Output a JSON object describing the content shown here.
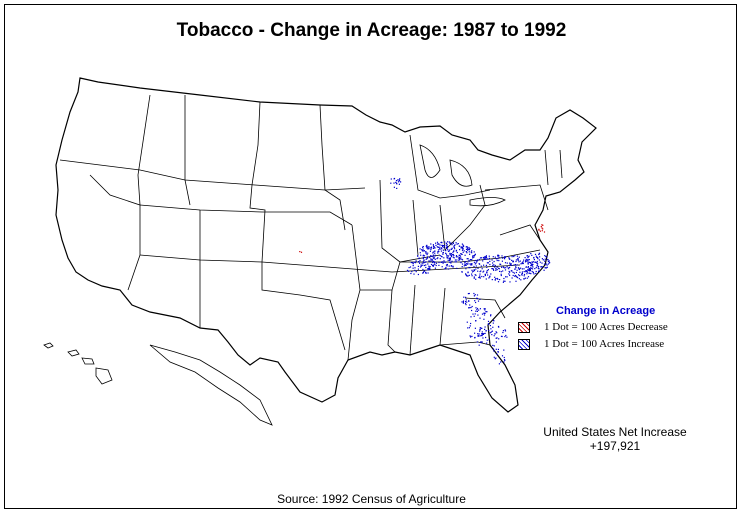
{
  "title": "Tobacco - Change in Acreage:  1987 to 1992",
  "legend": {
    "title": "Change in Acreage",
    "items": [
      {
        "label": "1 Dot = 100 Acres  Decrease",
        "color": "#cc0000"
      },
      {
        "label": "1 Dot = 100 Acres Increase",
        "color": "#0000cc"
      }
    ]
  },
  "net": {
    "label": "United States Net Increase",
    "value": "+197,921"
  },
  "source": "Source:  1992 Census of Agriculture",
  "colors": {
    "increase": "#0000cc",
    "decrease": "#cc0000",
    "outline": "#000000"
  }
}
